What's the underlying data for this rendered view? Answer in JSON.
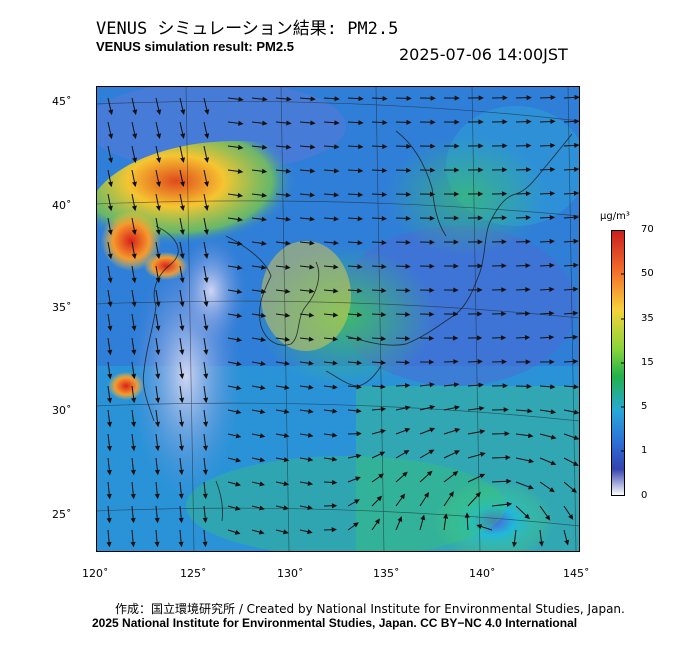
{
  "title_jp": "VENUS シミュレーション結果: PM2.5",
  "title_en": "VENUS simulation result: PM2.5",
  "timestamp": "2025-07-06 14:00JST",
  "map": {
    "lat_ticks": [
      "45˚",
      "40˚",
      "35˚",
      "30˚",
      "25˚"
    ],
    "lon_ticks": [
      "120˚",
      "125˚",
      "130˚",
      "135˚",
      "140˚",
      "145˚"
    ],
    "lon_range": [
      120,
      145
    ],
    "lat_range": [
      23,
      46
    ]
  },
  "colorbar": {
    "unit": "μg/m³",
    "labels": [
      "70",
      "50",
      "35",
      "15",
      "5",
      "1",
      "0"
    ],
    "colors": [
      "#d7191c",
      "#f46d43",
      "#fdae61",
      "#fee08b",
      "#a6d96a",
      "#1a9641",
      "#2b83ba",
      "#1f4fbf",
      "#ffffff"
    ]
  },
  "credit_line1": "作成：国立環境研究所 / Created by National Institute for Environmental Studies, Japan.",
  "credit_line2": "2025 National Institute for Environmental Studies, Japan. CC BY−NC 4.0 International"
}
